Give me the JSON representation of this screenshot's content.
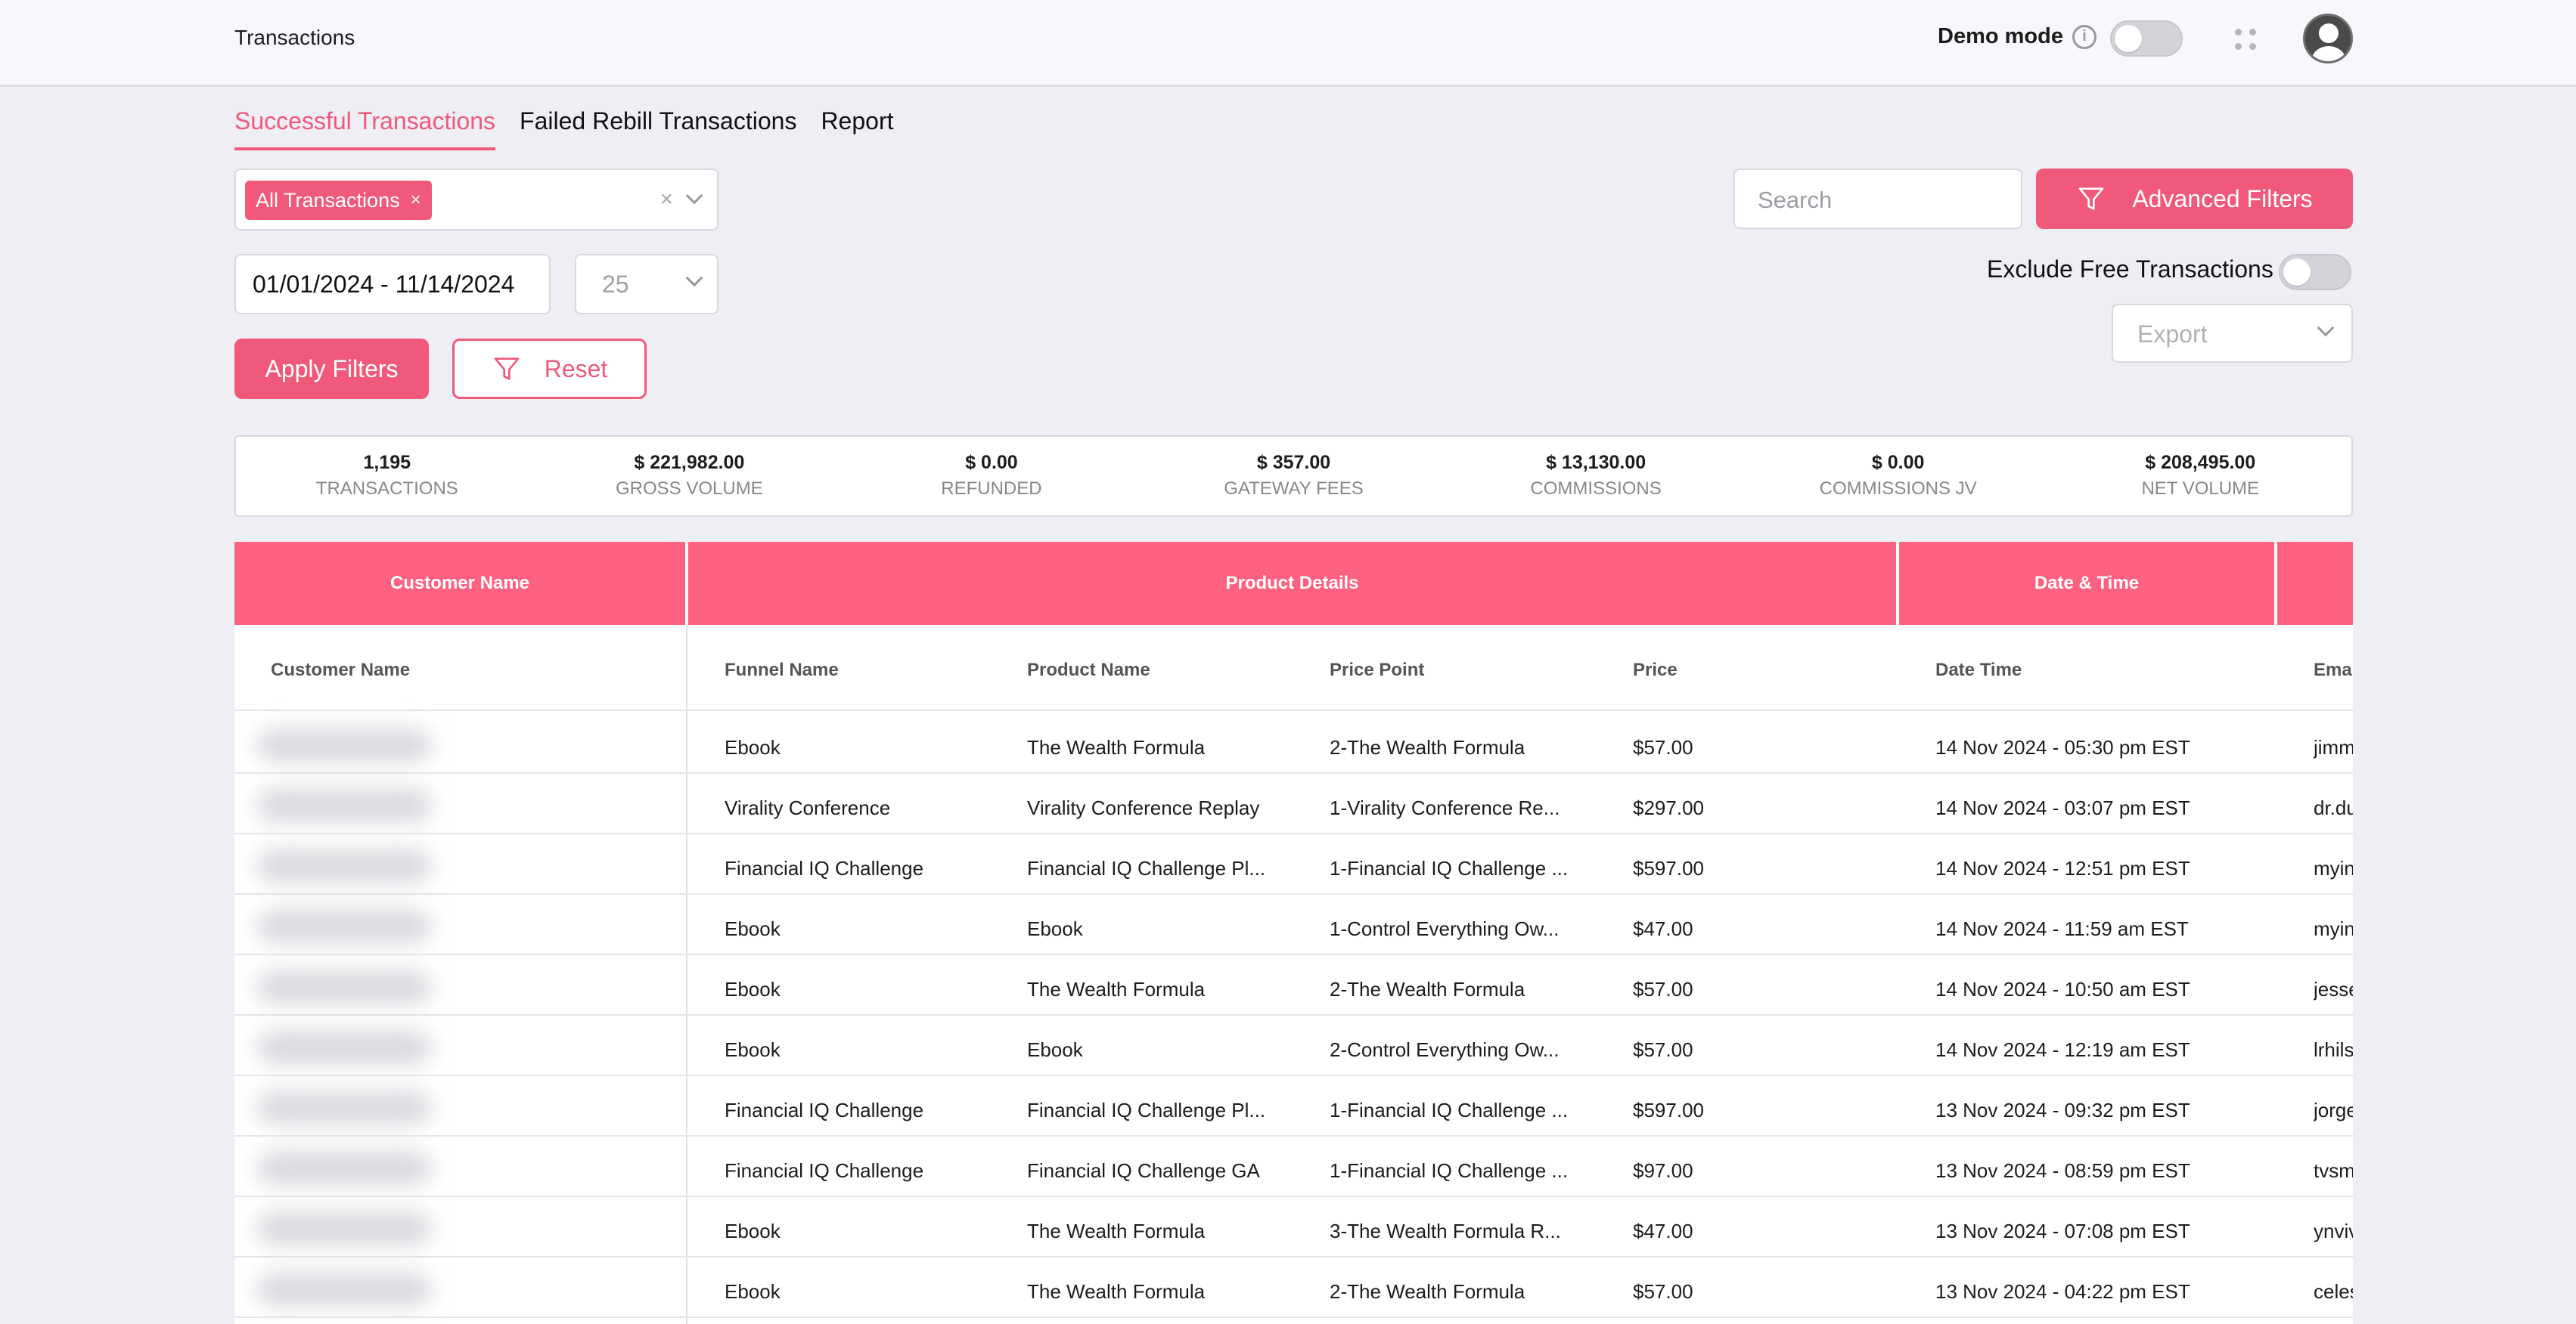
{
  "header": {
    "title": "Transactions",
    "demo_label": "Demo mode",
    "info_icon": "i"
  },
  "tabs": [
    {
      "label": "Successful Transactions",
      "active": true
    },
    {
      "label": "Failed Rebill Transactions",
      "active": false
    },
    {
      "label": "Report",
      "active": false
    }
  ],
  "filters": {
    "transaction_chip": "All Transactions",
    "chip_remove": "×",
    "clear": "×",
    "date_range": "01/01/2024 - 11/14/2024",
    "per_page": "25",
    "apply_label": "Apply Filters",
    "reset_label": "Reset",
    "search_placeholder": "Search",
    "advanced_label": "Advanced Filters",
    "exclude_free_label": "Exclude Free Transactions",
    "export_placeholder": "Export"
  },
  "stats": [
    {
      "value": "1,195",
      "label": "Transactions"
    },
    {
      "value": "$ 221,982.00",
      "label": "Gross Volume"
    },
    {
      "value": "$ 0.00",
      "label": "Refunded"
    },
    {
      "value": "$ 357.00",
      "label": "Gateway Fees"
    },
    {
      "value": "$ 13,130.00",
      "label": "Commissions"
    },
    {
      "value": "$ 0.00",
      "label": "Commissions JV"
    },
    {
      "value": "$ 208,495.00",
      "label": "Net Volume"
    }
  ],
  "table": {
    "groups": [
      "Customer Name",
      "Product Details",
      "Date & Time"
    ],
    "columns": [
      "Customer Name",
      "Funnel Name",
      "Product Name",
      "Price Point",
      "Price",
      "Date Time",
      "Emai"
    ],
    "rows": [
      {
        "funnel": "Ebook",
        "product": "The Wealth Formula",
        "price_point": "2-The Wealth Formula",
        "price": "$57.00",
        "datetime": "14 Nov 2024 - 05:30 pm EST",
        "email": "jimm"
      },
      {
        "funnel": "Virality Conference",
        "product": "Virality Conference Replay",
        "price_point": "1-Virality Conference Re...",
        "price": "$297.00",
        "datetime": "14 Nov 2024 - 03:07 pm EST",
        "email": "dr.du"
      },
      {
        "funnel": "Financial IQ Challenge",
        "product": "Financial IQ Challenge Pl...",
        "price_point": "1-Financial IQ Challenge ...",
        "price": "$597.00",
        "datetime": "14 Nov 2024 - 12:51 pm EST",
        "email": "myin"
      },
      {
        "funnel": "Ebook",
        "product": "Ebook",
        "price_point": "1-Control Everything Ow...",
        "price": "$47.00",
        "datetime": "14 Nov 2024 - 11:59 am EST",
        "email": "myin"
      },
      {
        "funnel": "Ebook",
        "product": "The Wealth Formula",
        "price_point": "2-The Wealth Formula",
        "price": "$57.00",
        "datetime": "14 Nov 2024 - 10:50 am EST",
        "email": "jesse"
      },
      {
        "funnel": "Ebook",
        "product": "Ebook",
        "price_point": "2-Control Everything Ow...",
        "price": "$57.00",
        "datetime": "14 Nov 2024 - 12:19 am EST",
        "email": "lrhils"
      },
      {
        "funnel": "Financial IQ Challenge",
        "product": "Financial IQ Challenge Pl...",
        "price_point": "1-Financial IQ Challenge ...",
        "price": "$597.00",
        "datetime": "13 Nov 2024 - 09:32 pm EST",
        "email": "jorge"
      },
      {
        "funnel": "Financial IQ Challenge",
        "product": "Financial IQ Challenge GA",
        "price_point": "1-Financial IQ Challenge ...",
        "price": "$97.00",
        "datetime": "13 Nov 2024 - 08:59 pm EST",
        "email": "tvsm"
      },
      {
        "funnel": "Ebook",
        "product": "The Wealth Formula",
        "price_point": "3-The Wealth Formula R...",
        "price": "$47.00",
        "datetime": "13 Nov 2024 - 07:08 pm EST",
        "email": "ynviv"
      },
      {
        "funnel": "Ebook",
        "product": "The Wealth Formula",
        "price_point": "2-The Wealth Formula",
        "price": "$57.00",
        "datetime": "13 Nov 2024 - 04:22 pm EST",
        "email": "celes"
      }
    ]
  }
}
